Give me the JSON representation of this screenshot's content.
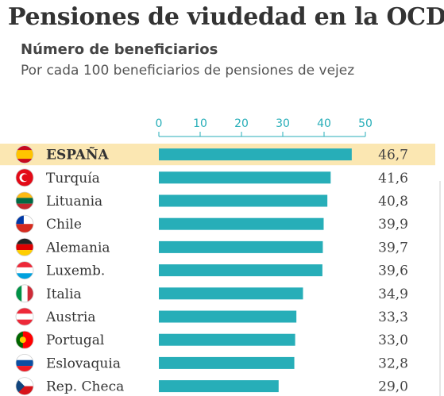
{
  "header": {
    "title": "Pensiones de viudedad en la OCDE",
    "subtitle": "Número de beneficiarios",
    "description": "Por cada 100 beneficiarios de pensiones de vejez"
  },
  "colors": {
    "bar": "#27aeb8",
    "highlight_row": "#fbe7b2",
    "axis_text": "#27aeb8",
    "value_text": "#444444"
  },
  "chart_data": {
    "type": "bar",
    "orientation": "horizontal",
    "categories": [
      "ESPAÑA",
      "Turquía",
      "Lituania",
      "Chile",
      "Alemania",
      "Luxemb.",
      "Italia",
      "Austria",
      "Portugal",
      "Eslovaquia",
      "Rep. Checa"
    ],
    "values": [
      46.7,
      41.6,
      40.8,
      39.9,
      39.7,
      39.6,
      34.9,
      33.3,
      33.0,
      32.8,
      29.0
    ],
    "value_labels": [
      "46,7",
      "41,6",
      "40,8",
      "39,9",
      "39,7",
      "39,6",
      "34,9",
      "33,3",
      "33,0",
      "32,8",
      "29,0"
    ],
    "flag_icons": [
      "flag-spain-icon",
      "flag-turkey-icon",
      "flag-lithuania-icon",
      "flag-chile-icon",
      "flag-germany-icon",
      "flag-luxembourg-icon",
      "flag-italy-icon",
      "flag-austria-icon",
      "flag-portugal-icon",
      "flag-slovakia-icon",
      "flag-czech-icon"
    ],
    "highlight": "ESPAÑA",
    "xticks": [
      0,
      10,
      20,
      30,
      40,
      50
    ],
    "xlim": [
      0,
      50
    ],
    "axis_position": "top",
    "grid": false
  }
}
